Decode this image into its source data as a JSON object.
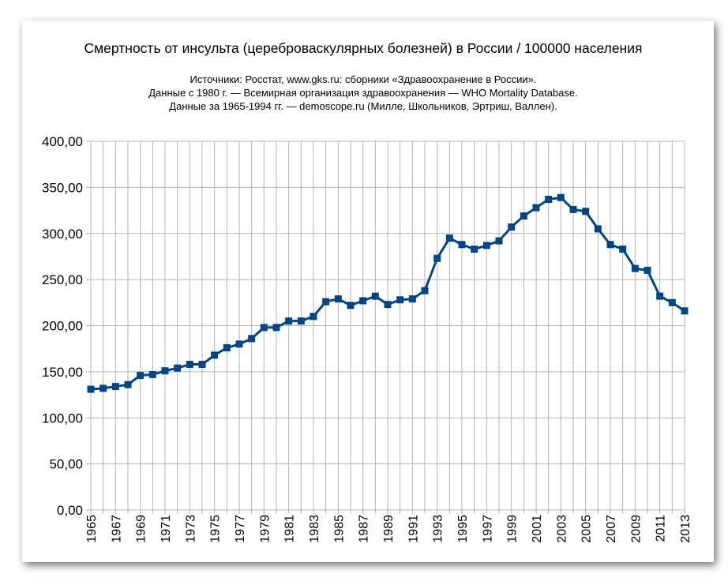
{
  "chart_data": {
    "type": "line",
    "title": "Смертность от инсульта (цереброваскулярных болезней) в России / 100000 населения",
    "subtitle_lines": [
      "Источники: Росстат, www.gks.ru: сборники «Здравоохранение в России».",
      "Данные с 1980 г. — Всемирная организация здравоохранения — WHO Mortality Database.",
      "Данные за 1965-1994 гг. — demoscope.ru (Милле, Школьников, Эртриш, Валлен)."
    ],
    "xlabel": "",
    "ylabel": "",
    "ylim": [
      0,
      400
    ],
    "y_ticks": [
      0,
      50,
      100,
      150,
      200,
      250,
      300,
      350,
      400
    ],
    "y_tick_labels": [
      "0,00",
      "50,00",
      "100,00",
      "150,00",
      "200,00",
      "250,00",
      "300,00",
      "350,00",
      "400,00"
    ],
    "x_tick_labels": [
      "1965",
      "1967",
      "1969",
      "1971",
      "1973",
      "1975",
      "1977",
      "1979",
      "1981",
      "1983",
      "1985",
      "1987",
      "1989",
      "1991",
      "1993",
      "1995",
      "1997",
      "1999",
      "2001",
      "2003",
      "2005",
      "2007",
      "2009",
      "2011",
      "2013"
    ],
    "grid": true,
    "series": [
      {
        "name": "Смертность от инсульта",
        "color": "#004586",
        "x": [
          1965,
          1966,
          1967,
          1968,
          1969,
          1970,
          1971,
          1972,
          1973,
          1974,
          1975,
          1976,
          1977,
          1978,
          1979,
          1980,
          1981,
          1982,
          1983,
          1984,
          1985,
          1986,
          1987,
          1988,
          1989,
          1990,
          1991,
          1992,
          1993,
          1994,
          1995,
          1996,
          1997,
          1998,
          1999,
          2000,
          2001,
          2002,
          2003,
          2004,
          2005,
          2006,
          2007,
          2008,
          2009,
          2010,
          2011,
          2012,
          2013
        ],
        "values": [
          131,
          132,
          134,
          136,
          146,
          147,
          151,
          154,
          158,
          158,
          168,
          176,
          180,
          186,
          198,
          198,
          205,
          205,
          210,
          226,
          229,
          222,
          227,
          232,
          223,
          228,
          229,
          238,
          273,
          295,
          288,
          283,
          287,
          292,
          307,
          319,
          328,
          337,
          339,
          326,
          324,
          305,
          288,
          283,
          262,
          260,
          232,
          225,
          216
        ]
      }
    ]
  }
}
